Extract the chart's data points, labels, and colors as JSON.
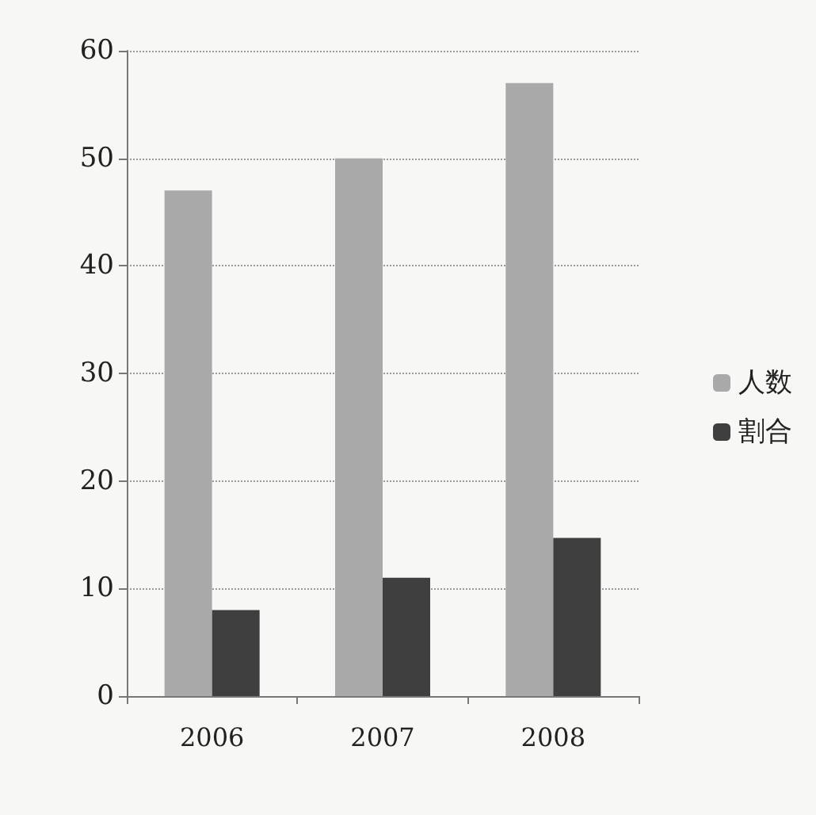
{
  "chart_data": {
    "type": "bar",
    "categories": [
      "2006",
      "2007",
      "2008"
    ],
    "series": [
      {
        "name": "人数",
        "color": "#a9a9a9",
        "values": [
          47,
          50,
          57
        ]
      },
      {
        "name": "割合",
        "color": "#3f3f3f",
        "values": [
          8,
          11,
          14.7
        ]
      }
    ],
    "ylim": [
      0,
      60
    ],
    "yticks": [
      0,
      10,
      20,
      30,
      40,
      50,
      60
    ],
    "grid": "y",
    "legend": "right"
  }
}
